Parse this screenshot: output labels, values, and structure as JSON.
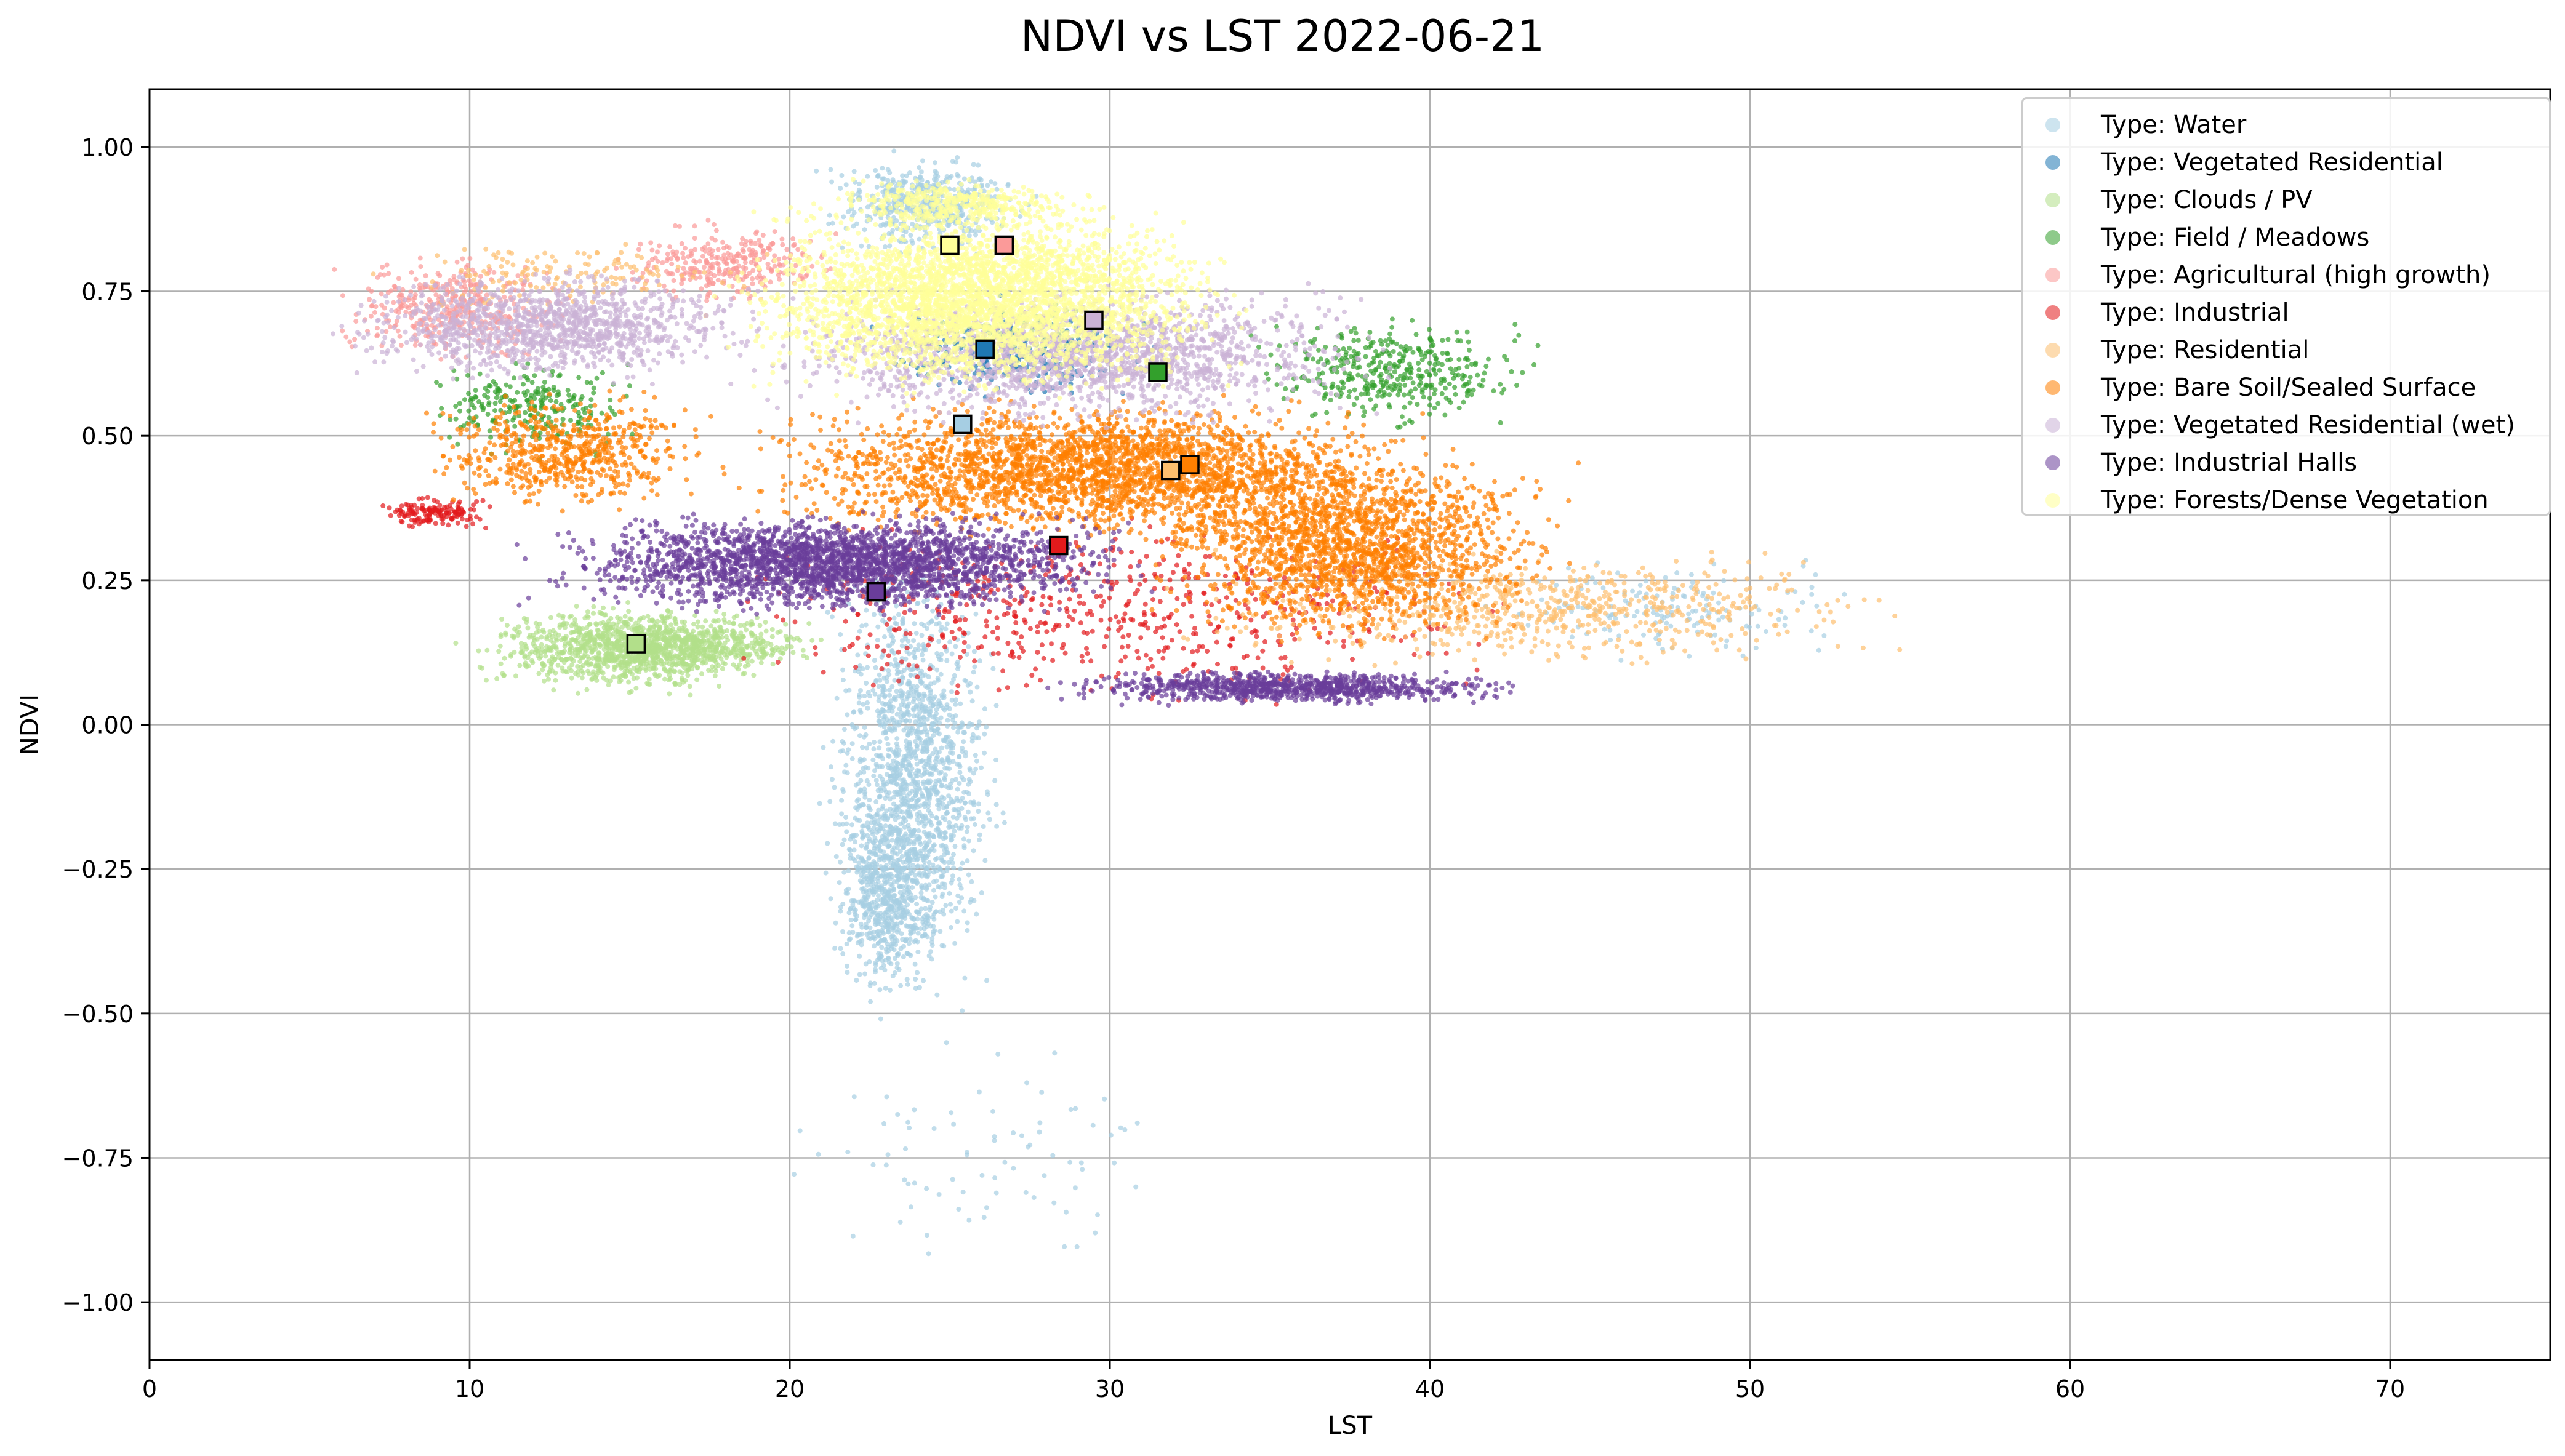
{
  "chart_data": {
    "type": "scatter",
    "title": "NDVI vs LST 2022-06-21",
    "xlabel": "LST",
    "ylabel": "NDVI",
    "xlim": [
      0,
      75
    ],
    "ylim": [
      -1.1,
      1.1
    ],
    "x_ticks": [
      0,
      10,
      20,
      30,
      40,
      50,
      60,
      70
    ],
    "y_ticks": [
      1.0,
      0.75,
      0.5,
      0.25,
      0.0,
      -0.25,
      -0.5,
      -0.75,
      -1.0
    ],
    "x_tick_labels": [
      "0",
      "10",
      "20",
      "30",
      "40",
      "50",
      "60",
      "70"
    ],
    "y_tick_labels": [
      "1.00",
      "0.75",
      "0.50",
      "0.25",
      "0.00",
      "−0.25",
      "−0.50",
      "−0.75",
      "−1.00"
    ],
    "grid": true,
    "legend_position": "top-right",
    "series": [
      {
        "name": "Type: Water",
        "color": "#a6cee3",
        "clouds": [
          {
            "x": [
              20.5,
              28
            ],
            "y": [
              0.8,
              1.0
            ],
            "n": 500
          },
          {
            "x": [
              20.8,
              27
            ],
            "y": [
              -0.52,
              0.35
            ],
            "n": 1500
          },
          {
            "x": [
              21,
              25
            ],
            "y": [
              -0.5,
              -0.1
            ],
            "n": 600
          },
          {
            "x": [
              18,
              34
            ],
            "y": [
              -1.0,
              -0.5
            ],
            "n": 80
          },
          {
            "x": [
              40,
              55
            ],
            "y": [
              0.1,
              0.3
            ],
            "n": 150
          }
        ],
        "centroid": {
          "x": 25.4,
          "y": 0.52
        }
      },
      {
        "name": "Type: Vegetated Residential",
        "color": "#1f78b4",
        "clouds": [
          {
            "x": [
              22,
              32
            ],
            "y": [
              0.55,
              0.75
            ],
            "n": 300
          }
        ],
        "centroid": {
          "x": 26.1,
          "y": 0.65
        }
      },
      {
        "name": "Type: Clouds / PV",
        "color": "#b2df8a",
        "clouds": [
          {
            "x": [
              9.5,
              20
            ],
            "y": [
              0.04,
              0.22
            ],
            "n": 900
          },
          {
            "x": [
              12,
              22
            ],
            "y": [
              0.08,
              0.2
            ],
            "n": 500
          }
        ],
        "centroid": {
          "x": 15.2,
          "y": 0.14
        }
      },
      {
        "name": "Type: Field / Meadows",
        "color": "#33a02c",
        "clouds": [
          {
            "x": [
              8,
              16
            ],
            "y": [
              0.45,
              0.65
            ],
            "n": 250
          },
          {
            "x": [
              34,
              44
            ],
            "y": [
              0.5,
              0.72
            ],
            "n": 400
          }
        ],
        "centroid": {
          "x": 31.5,
          "y": 0.61
        }
      },
      {
        "name": "Type: Agricultural (high growth)",
        "color": "#fb9a99",
        "clouds": [
          {
            "x": [
              5,
              14
            ],
            "y": [
              0.62,
              0.82
            ],
            "n": 400
          },
          {
            "x": [
              14,
              22
            ],
            "y": [
              0.72,
              0.88
            ],
            "n": 300
          }
        ],
        "centroid": {
          "x": 26.7,
          "y": 0.83
        }
      },
      {
        "name": "Type: Industrial",
        "color": "#e31a1c",
        "clouds": [
          {
            "x": [
              7,
              11
            ],
            "y": [
              0.33,
              0.4
            ],
            "n": 150
          },
          {
            "x": [
              16,
              45
            ],
            "y": [
              0.0,
              0.38
            ],
            "n": 600
          }
        ],
        "centroid": {
          "x": 28.4,
          "y": 0.31
        }
      },
      {
        "name": "Type: Residential",
        "color": "#fdbf6f",
        "clouds": [
          {
            "x": [
              30,
              56
            ],
            "y": [
              0.08,
              0.32
            ],
            "n": 700
          },
          {
            "x": [
              6,
              20
            ],
            "y": [
              0.7,
              0.85
            ],
            "n": 150
          }
        ],
        "centroid": {
          "x": 31.9,
          "y": 0.44
        }
      },
      {
        "name": "Type: Bare Soil/Sealed Surface",
        "color": "#ff7f00",
        "clouds": [
          {
            "x": [
              8,
              18
            ],
            "y": [
              0.35,
              0.6
            ],
            "n": 600
          },
          {
            "x": [
              17,
              42
            ],
            "y": [
              0.3,
              0.58
            ],
            "n": 2600
          },
          {
            "x": [
              30,
              45
            ],
            "y": [
              0.12,
              0.5
            ],
            "n": 1800
          }
        ],
        "centroid": {
          "x": 32.5,
          "y": 0.45
        }
      },
      {
        "name": "Type: Vegetated Residential (wet)",
        "color": "#cab2d6",
        "clouds": [
          {
            "x": [
              5,
              20
            ],
            "y": [
              0.58,
              0.8
            ],
            "n": 1200
          },
          {
            "x": [
              18,
              40
            ],
            "y": [
              0.5,
              0.78
            ],
            "n": 1800
          }
        ],
        "centroid": {
          "x": 29.5,
          "y": 0.7
        }
      },
      {
        "name": "Type: Industrial Halls",
        "color": "#6a3d9a",
        "clouds": [
          {
            "x": [
              11,
              32
            ],
            "y": [
              0.18,
              0.38
            ],
            "n": 2600
          },
          {
            "x": [
              27,
              44
            ],
            "y": [
              0.03,
              0.1
            ],
            "n": 900
          }
        ],
        "centroid": {
          "x": 22.7,
          "y": 0.23
        }
      },
      {
        "name": "Type: Forests/Dense Vegetation",
        "color": "#ffff99",
        "clouds": [
          {
            "x": [
              17,
              35
            ],
            "y": [
              0.55,
              0.92
            ],
            "n": 3500
          },
          {
            "x": [
              20,
              30
            ],
            "y": [
              0.85,
              0.95
            ],
            "n": 400
          }
        ],
        "centroid": {
          "x": 25.0,
          "y": 0.83
        }
      }
    ]
  }
}
